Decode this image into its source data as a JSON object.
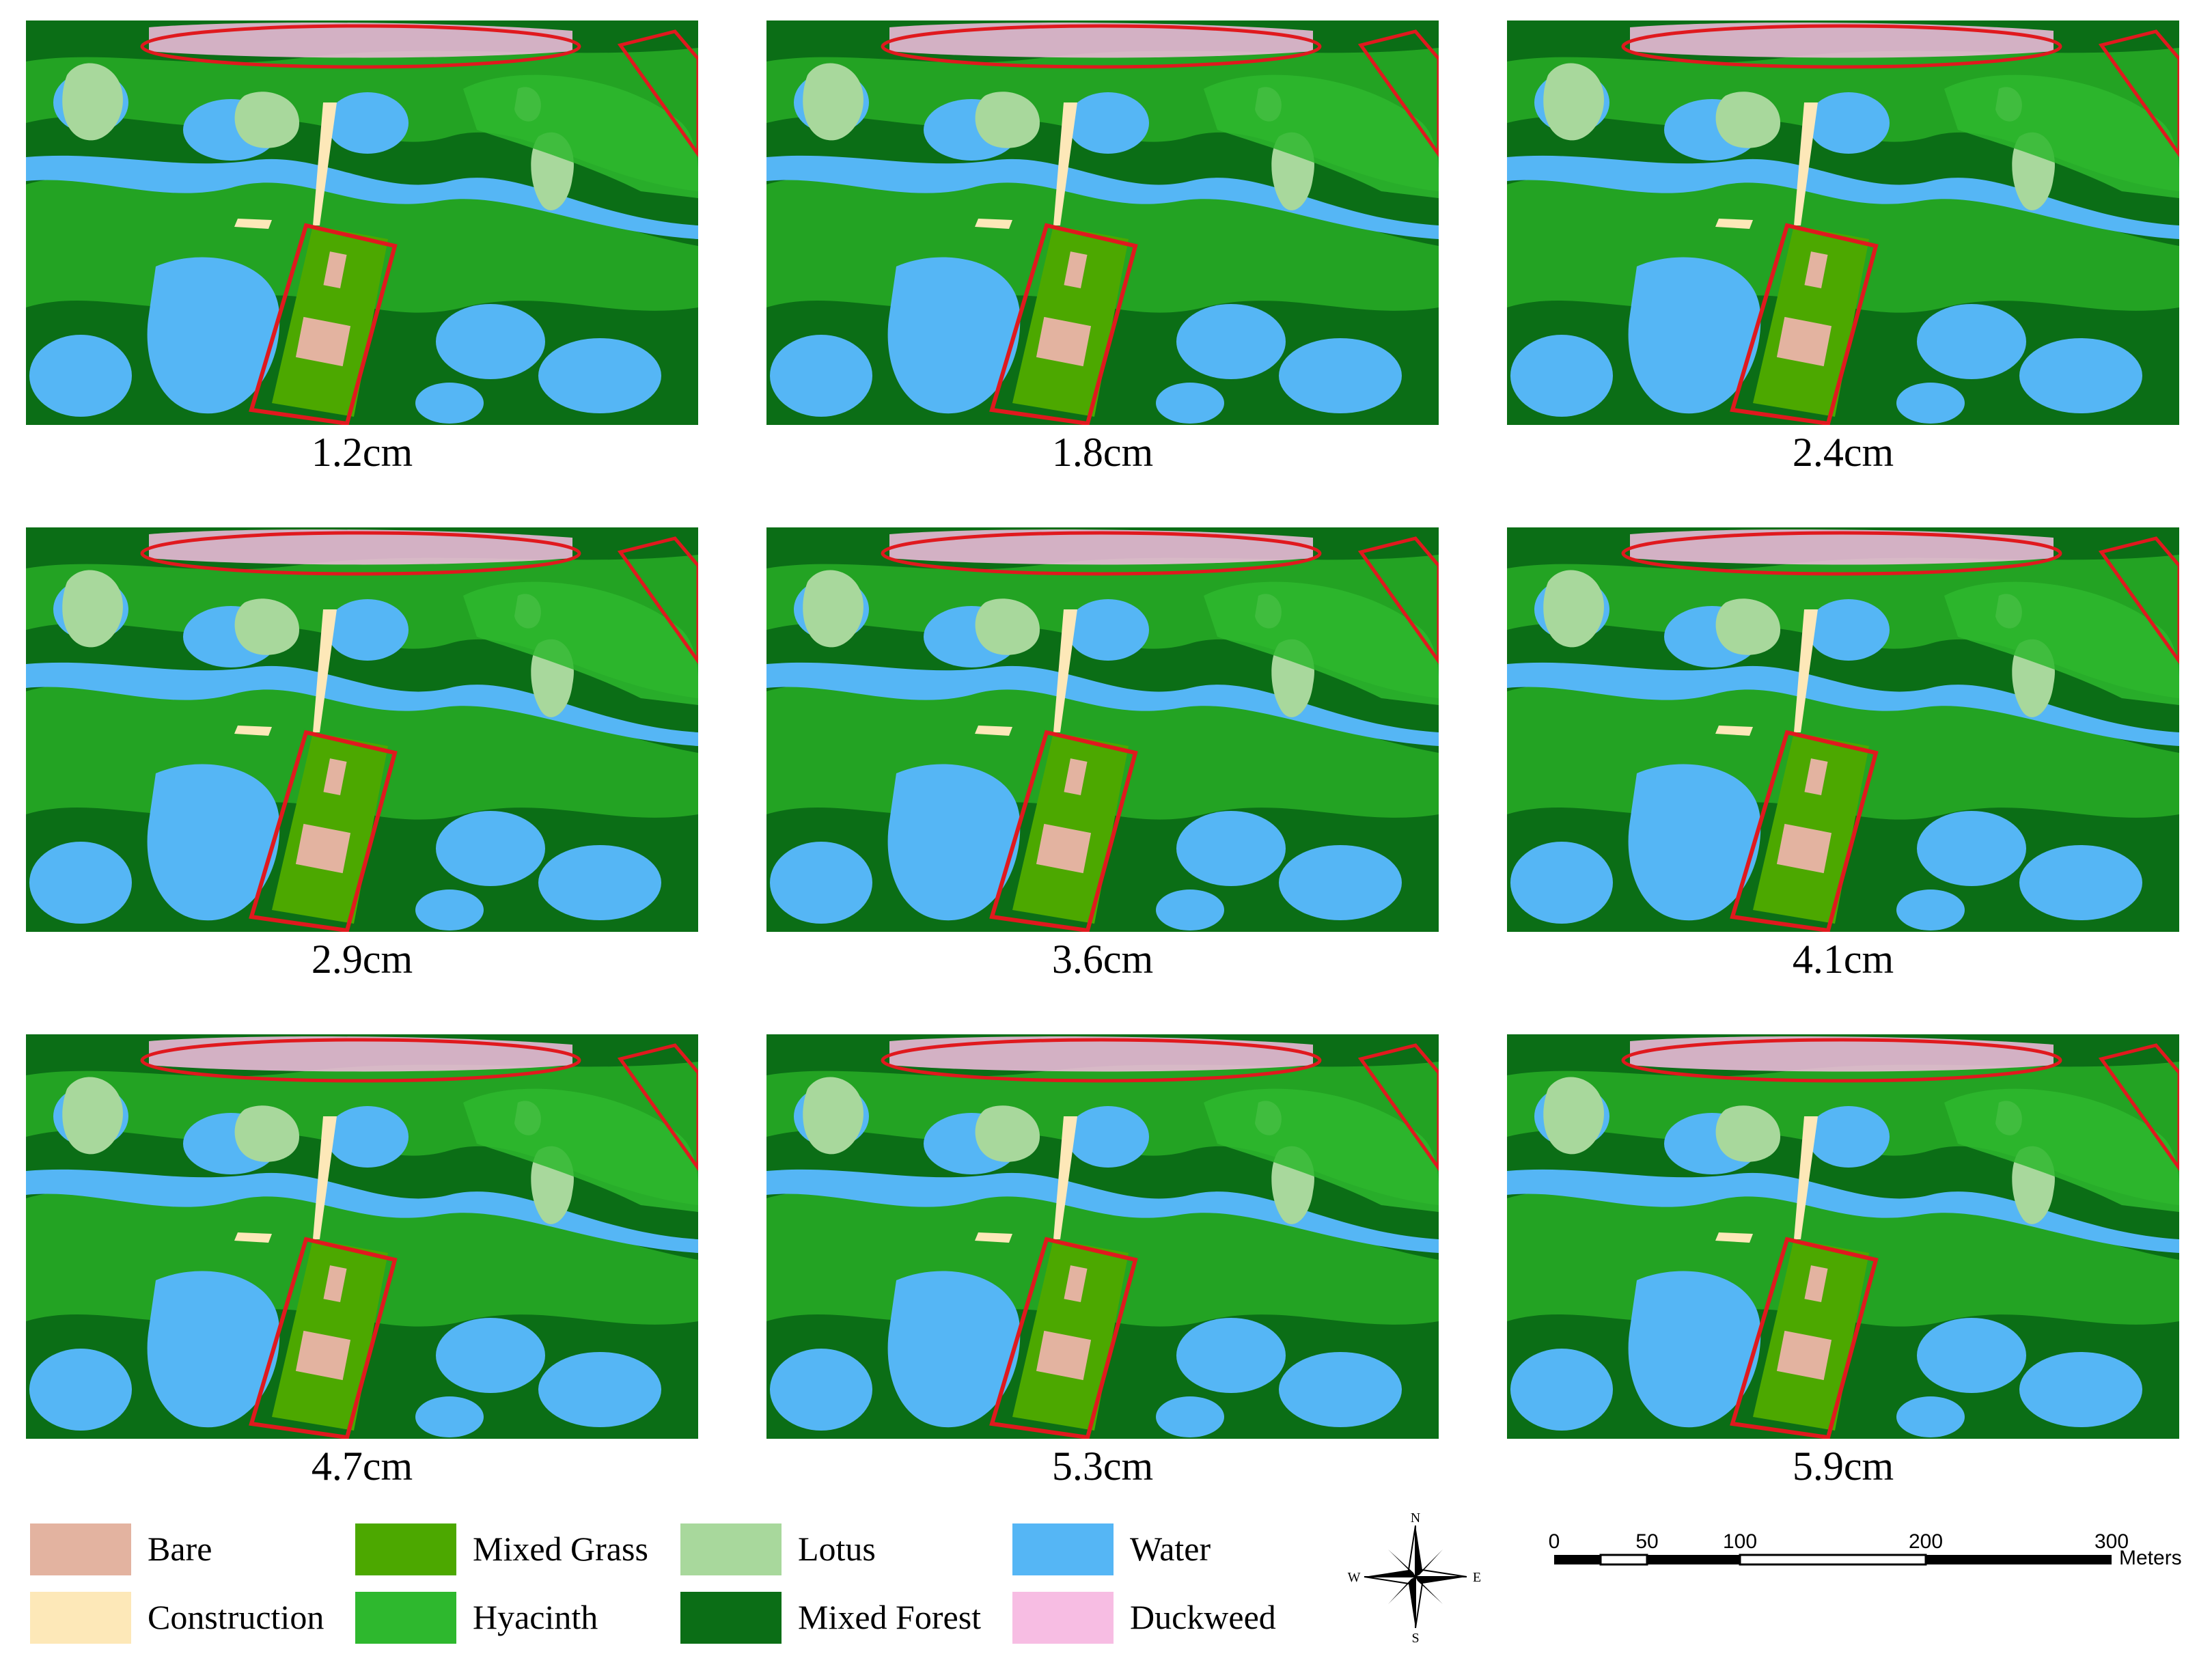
{
  "panels": [
    {
      "label": "1.2cm"
    },
    {
      "label": "1.8cm"
    },
    {
      "label": "2.4cm"
    },
    {
      "label": "2.9cm"
    },
    {
      "label": "3.6cm"
    },
    {
      "label": "4.1cm"
    },
    {
      "label": "4.7cm"
    },
    {
      "label": "5.3cm"
    },
    {
      "label": "5.9cm"
    }
  ],
  "legend": [
    {
      "label": "Bare",
      "color": "#e3b3a0"
    },
    {
      "label": "Construction",
      "color": "#fde8b8"
    },
    {
      "label": "Mixed Grass",
      "color": "#4ca800"
    },
    {
      "label": "Hyacinth",
      "color": "#2eb82e"
    },
    {
      "label": "Lotus",
      "color": "#a8d89c"
    },
    {
      "label": "Mixed Forest",
      "color": "#0b6e16"
    },
    {
      "label": "Water",
      "color": "#55b6f5"
    },
    {
      "label": "Duckweed",
      "color": "#f7bde3"
    }
  ],
  "compass": {
    "north": "N",
    "south": "S",
    "east": "E",
    "west": "W"
  },
  "scale": {
    "ticks": [
      "0",
      "50",
      "100",
      "200",
      "300"
    ],
    "unit": "Meters"
  },
  "colors": {
    "highlight": "#e0191e",
    "background_green": "#1f9a1f"
  }
}
